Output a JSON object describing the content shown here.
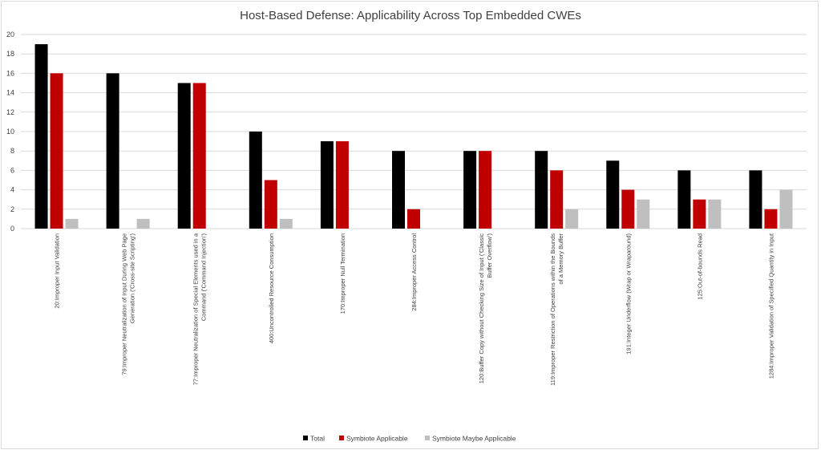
{
  "chart_data": {
    "type": "bar",
    "title": "Host-Based Defense: Applicability Across Top Embedded CWEs",
    "xlabel": "",
    "ylabel": "",
    "ylim": [
      0,
      20
    ],
    "yticks": [
      0,
      2,
      4,
      6,
      8,
      10,
      12,
      14,
      16,
      18,
      20
    ],
    "grid": true,
    "legend_position": "bottom",
    "categories": [
      [
        "20:Improper Input Validation"
      ],
      [
        "79:Improper Neutralization of Input During Web Page",
        "Generation ('Cross-site Scripting')"
      ],
      [
        "77:Improper Neutralization of Special Elements used in a",
        "Command ('Command Injection')"
      ],
      [
        "400:Uncontrolled Resource Consumption"
      ],
      [
        "170:Improper Null Termination"
      ],
      [
        "284:Improper Access Control"
      ],
      [
        "120:Buffer Copy without Checking Size of Input ('Classic",
        "Buffer Overflow')"
      ],
      [
        "119:Improper Restriction of Operations within the Bounds",
        "of a Memory Buffer"
      ],
      [
        "191:Integer Underflow (Wrap or Wraparound)"
      ],
      [
        "125:Out-of-bounds Read"
      ],
      [
        "1284:Improper Validation of Specified Quantity in Input"
      ]
    ],
    "series": [
      {
        "name": "Total",
        "color": "#000000",
        "values": [
          19,
          16,
          15,
          10,
          9,
          8,
          8,
          8,
          7,
          6,
          6
        ]
      },
      {
        "name": "Symbiote Applicable",
        "color": "#c00000",
        "values": [
          16,
          0,
          15,
          5,
          9,
          2,
          8,
          6,
          4,
          3,
          2
        ]
      },
      {
        "name": "Symbiote Maybe Applicable",
        "color": "#bfbfbf",
        "values": [
          1,
          1,
          0,
          1,
          0,
          0,
          0,
          2,
          3,
          3,
          4
        ]
      }
    ]
  }
}
